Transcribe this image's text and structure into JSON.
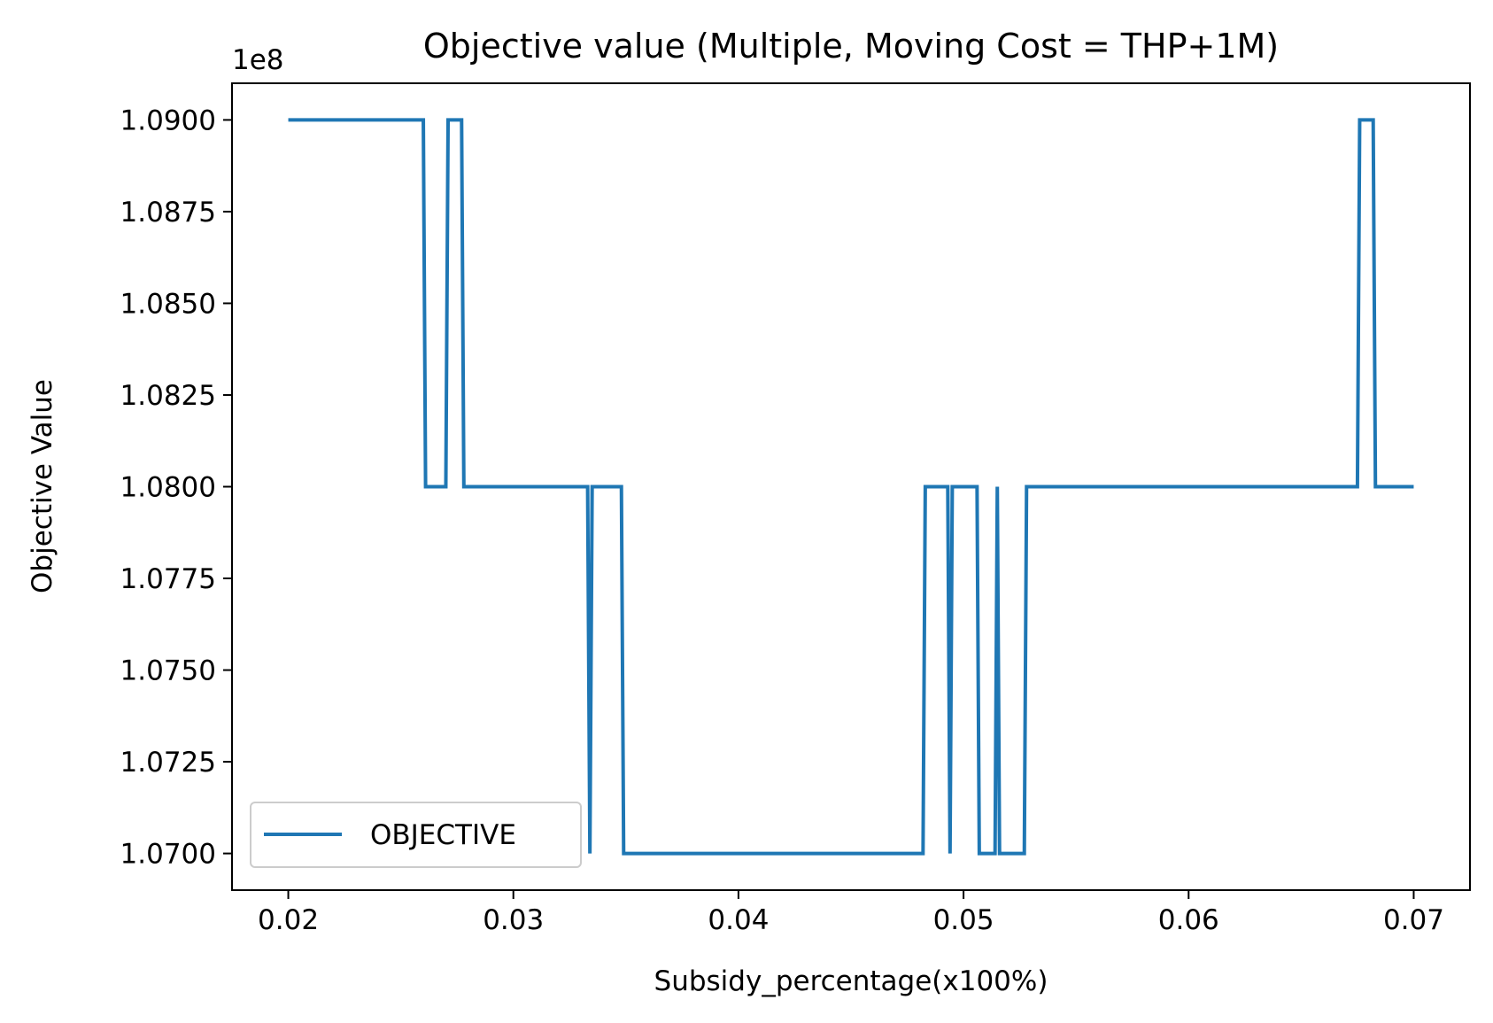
{
  "chart_data": {
    "type": "line",
    "title": "Objective value (Multiple, Moving Cost = THP+1M)",
    "xlabel": "Subsidy_percentage(x100%)",
    "ylabel": "Objective Value",
    "y_offset_label": "1e8",
    "xlim": [
      0.0175,
      0.0725
    ],
    "ylim": [
      1.069,
      1.091
    ],
    "x_ticks": [
      0.02,
      0.03,
      0.04,
      0.05,
      0.06,
      0.07
    ],
    "x_tick_labels": [
      "0.02",
      "0.03",
      "0.04",
      "0.05",
      "0.06",
      "0.07"
    ],
    "y_ticks": [
      1.07,
      1.0725,
      1.075,
      1.0775,
      1.08,
      1.0825,
      1.085,
      1.0875,
      1.09
    ],
    "y_tick_labels": [
      "1.0700",
      "1.0725",
      "1.0750",
      "1.0775",
      "1.0800",
      "1.0825",
      "1.0850",
      "1.0875",
      "1.0900"
    ],
    "grid": false,
    "legend_position": "lower-left",
    "series_color": "#1f77b4",
    "series": [
      {
        "name": "OBJECTIVE",
        "x": [
          0.02,
          0.026,
          0.0261,
          0.027,
          0.0271,
          0.0277,
          0.0278,
          0.0333,
          0.0334,
          0.0335,
          0.0336,
          0.0348,
          0.0349,
          0.0482,
          0.0483,
          0.0493,
          0.0494,
          0.0495,
          0.0496,
          0.0506,
          0.0507,
          0.0514,
          0.0515,
          0.0516,
          0.0517,
          0.0527,
          0.0528,
          0.0675,
          0.0676,
          0.0682,
          0.0683,
          0.07
        ],
        "values": [
          1.09,
          1.09,
          1.08,
          1.08,
          1.09,
          1.09,
          1.08,
          1.08,
          1.07,
          1.08,
          1.08,
          1.08,
          1.07,
          1.07,
          1.08,
          1.08,
          1.07,
          1.08,
          1.08,
          1.08,
          1.07,
          1.07,
          1.08,
          1.07,
          1.07,
          1.07,
          1.08,
          1.08,
          1.09,
          1.09,
          1.08,
          1.08
        ]
      }
    ]
  }
}
